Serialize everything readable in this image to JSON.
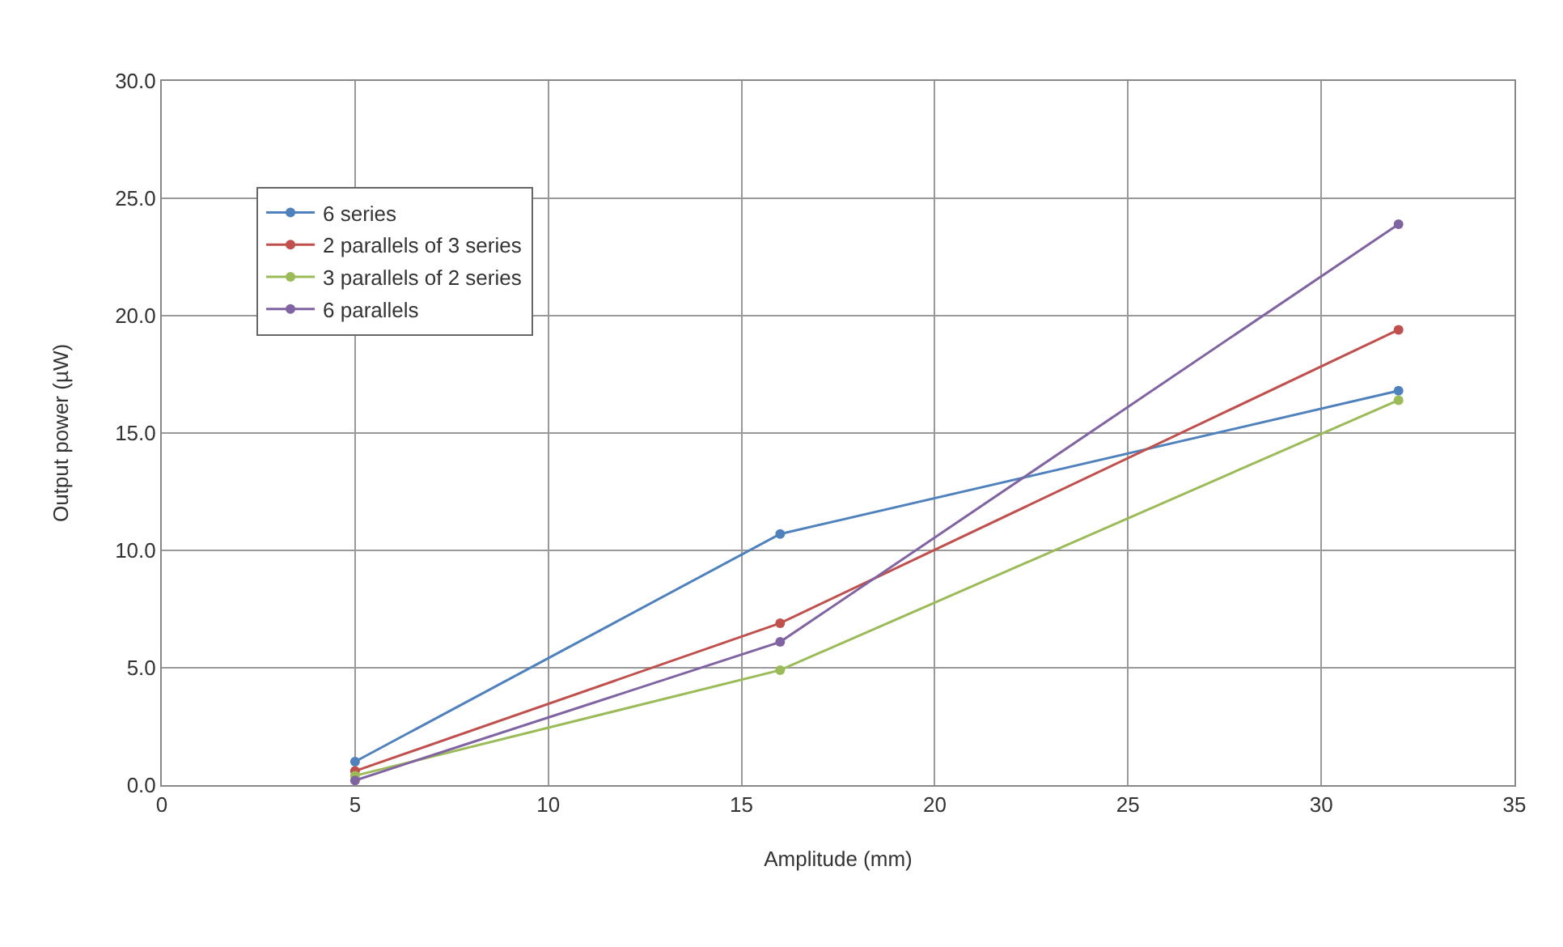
{
  "chart_data": {
    "type": "line",
    "xlabel": "Amplitude (mm)",
    "ylabel": "Output power (µW)",
    "x": [
      5,
      16,
      32
    ],
    "series": [
      {
        "name": "6 series",
        "color": "#4f81bd",
        "values": [
          1.0,
          10.7,
          16.8
        ]
      },
      {
        "name": "2 parallels of 3 series",
        "color": "#c0504d",
        "values": [
          0.6,
          6.9,
          19.4
        ]
      },
      {
        "name": "3 parallels of 2 series",
        "color": "#9bbb59",
        "values": [
          0.4,
          4.9,
          16.4
        ]
      },
      {
        "name": "6 parallels",
        "color": "#8064a2",
        "values": [
          0.2,
          6.1,
          23.9
        ]
      }
    ],
    "xlim": [
      0,
      35
    ],
    "xticks": [
      0,
      5,
      10,
      15,
      20,
      25,
      30,
      35
    ],
    "ylim": [
      0,
      30
    ],
    "yticks": [
      {
        "value": 0,
        "label": "0.0"
      },
      {
        "value": 5,
        "label": "5.0"
      },
      {
        "value": 10,
        "label": "10.0"
      },
      {
        "value": 15,
        "label": "15.0"
      },
      {
        "value": 20,
        "label": "20.0"
      },
      {
        "value": 25,
        "label": "25.0"
      },
      {
        "value": 30,
        "label": "30.0"
      }
    ],
    "grid": true,
    "legend": "top left",
    "marker": "circle",
    "line_style": "solid"
  }
}
